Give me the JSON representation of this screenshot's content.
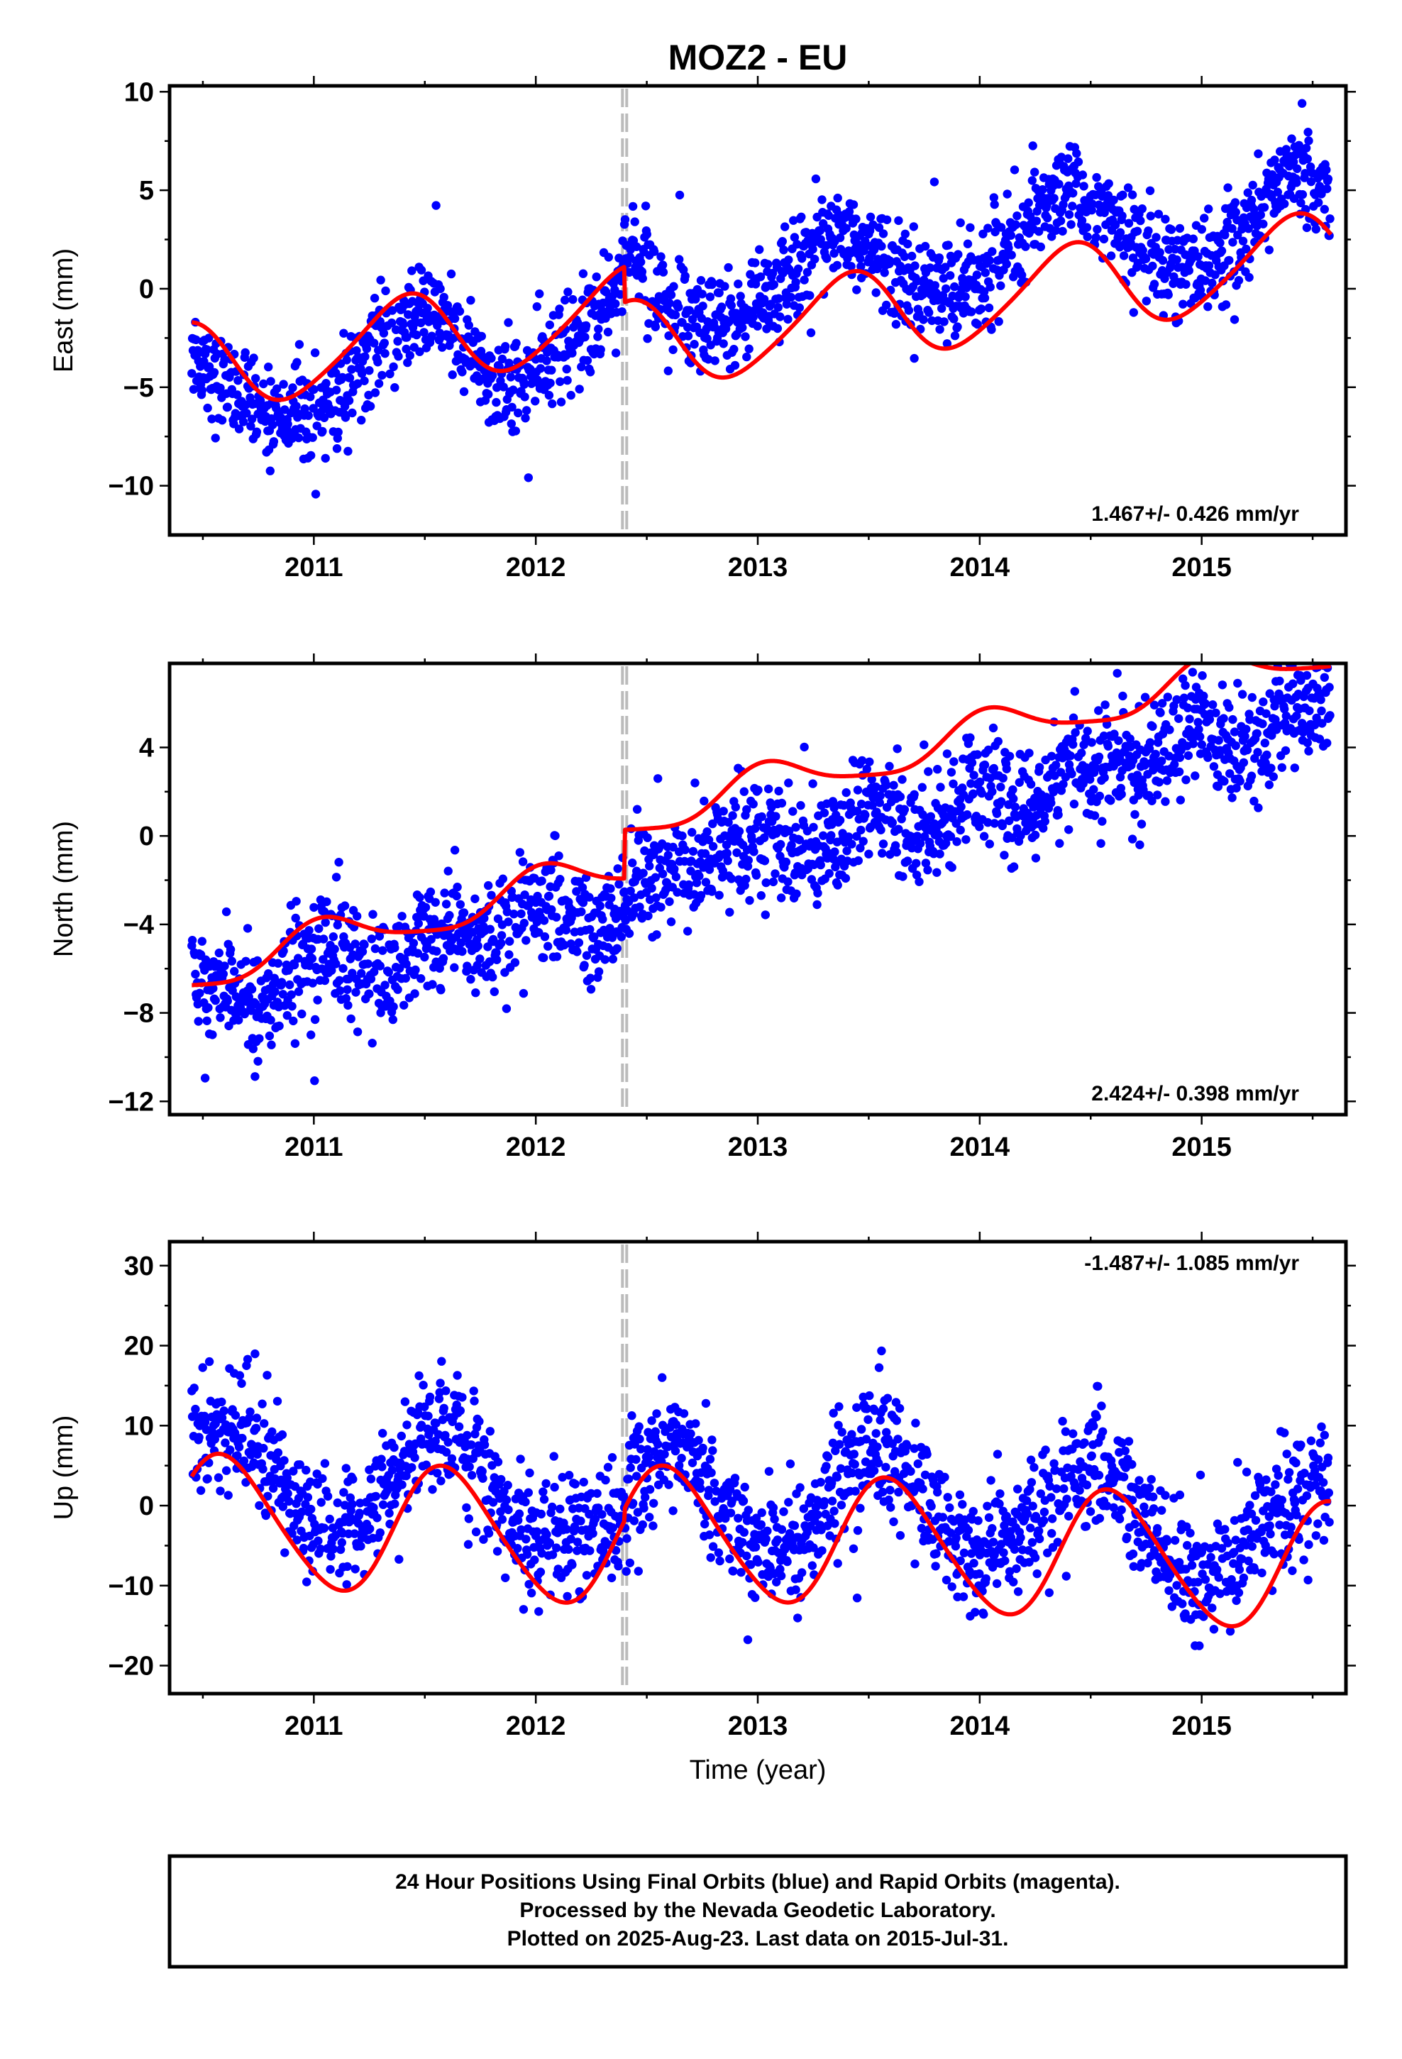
{
  "colors": {
    "points": "#0000ff",
    "fit": "#ff0000",
    "offset_marker": "#bbbbbb"
  },
  "chart_data": [
    {
      "type": "scatter",
      "title": "MOZ2 - EU",
      "ylabel": "East (mm)",
      "xlabel": "",
      "xlim": [
        2010.35,
        2015.65
      ],
      "ylim": [
        -12.5,
        10.3
      ],
      "xticks": [
        2011,
        2012,
        2013,
        2014,
        2015
      ],
      "yticks": [
        -10,
        -5,
        0,
        5,
        10
      ],
      "rate_label": "1.467+/- 0.426 mm/yr",
      "rate_placement": "bottom-right",
      "offset_epoch": 2012.4,
      "fit_model": {
        "rate": 1.467,
        "annual_amp": 2.2,
        "annual_phase_year": 0.4,
        "semiannual_amp": 0.3,
        "offset_epoch": 2012.4,
        "offset": -1.8,
        "reference_epoch": 2013.0,
        "reference_value": -0.3
      },
      "series": [
        {
          "name": "",
          "kind": "daily positions",
          "x": [
            2010.45,
            2010.6,
            2010.75,
            2010.9,
            2011.05,
            2011.2,
            2011.35,
            2011.5,
            2011.65,
            2011.8,
            2011.95,
            2012.1,
            2012.25,
            2012.38,
            2012.45,
            2012.6,
            2012.75,
            2012.9,
            2013.05,
            2013.2,
            2013.35,
            2013.5,
            2013.65,
            2013.8,
            2013.95,
            2014.1,
            2014.25,
            2014.4,
            2014.55,
            2014.7,
            2014.85,
            2015.0,
            2015.15,
            2015.3,
            2015.45,
            2015.58
          ],
          "values": [
            -3.0,
            -5.2,
            -6.4,
            -6.3,
            -5.6,
            -4.2,
            -1.9,
            -1.0,
            -2.8,
            -4.8,
            -4.6,
            -3.7,
            -2.0,
            0.7,
            2.2,
            -0.7,
            -1.9,
            -1.5,
            -0.6,
            1.6,
            3.3,
            2.4,
            0.5,
            -0.5,
            0.1,
            1.6,
            3.7,
            4.9,
            3.9,
            1.9,
            0.8,
            1.3,
            2.6,
            4.9,
            6.3,
            4.5
          ]
        },
        {
          "name": "",
          "kind": "fit",
          "color": "#ff0000"
        }
      ]
    },
    {
      "type": "scatter",
      "title": "",
      "ylabel": "North (mm)",
      "xlabel": "",
      "xlim": [
        2010.35,
        2015.65
      ],
      "ylim": [
        -12.6,
        7.8
      ],
      "xticks": [
        2011,
        2012,
        2013,
        2014,
        2015
      ],
      "yticks": [
        -12,
        -8,
        -4,
        0,
        4
      ],
      "rate_label": "2.424+/- 0.398 mm/yr",
      "rate_placement": "bottom-right",
      "offset_epoch": 2012.4,
      "fit_model": {
        "rate": 2.424,
        "annual_amp": 0.9,
        "annual_phase_year": 0.05,
        "semiannual_amp": 0.2,
        "offset_epoch": 2012.4,
        "offset": 2.2,
        "reference_epoch": 2013.0,
        "reference_value": 0.0
      },
      "series": [
        {
          "name": "",
          "kind": "daily positions",
          "x": [
            2010.45,
            2010.6,
            2010.75,
            2010.9,
            2011.05,
            2011.2,
            2011.35,
            2011.5,
            2011.65,
            2011.8,
            2011.95,
            2012.1,
            2012.25,
            2012.38,
            2012.45,
            2012.6,
            2012.75,
            2012.9,
            2013.05,
            2013.2,
            2013.35,
            2013.5,
            2013.65,
            2013.8,
            2013.95,
            2014.1,
            2014.25,
            2014.4,
            2014.55,
            2014.7,
            2014.85,
            2015.0,
            2015.15,
            2015.3,
            2015.45,
            2015.58
          ],
          "values": [
            -6.8,
            -6.6,
            -7.6,
            -6.2,
            -5.0,
            -5.8,
            -6.4,
            -4.5,
            -4.8,
            -4.8,
            -2.8,
            -3.0,
            -4.2,
            -3.5,
            -1.5,
            -1.4,
            -1.6,
            -0.2,
            0.4,
            -0.9,
            0.2,
            1.4,
            0.6,
            0.5,
            2.6,
            1.3,
            1.1,
            3.3,
            3.3,
            2.5,
            4.5,
            5.1,
            3.4,
            4.4,
            5.8,
            6.1
          ]
        },
        {
          "name": "",
          "kind": "fit",
          "color": "#ff0000"
        }
      ]
    },
    {
      "type": "scatter",
      "title": "",
      "ylabel": "Up (mm)",
      "xlabel": "Time (year)",
      "xlim": [
        2010.35,
        2015.65
      ],
      "ylim": [
        -23.5,
        33
      ],
      "xticks": [
        2011,
        2012,
        2013,
        2014,
        2015
      ],
      "yticks": [
        -20,
        -10,
        0,
        10,
        20,
        30
      ],
      "rate_label": "-1.487+/- 1.085 mm/yr",
      "rate_placement": "top-right",
      "offset_epoch": 2012.4,
      "fit_model": {
        "rate": -1.487,
        "annual_amp": 8.0,
        "annual_phase_year": 0.6,
        "semiannual_amp": 0.8,
        "offset_epoch": 2012.4,
        "offset": 1.5,
        "reference_epoch": 2013.0,
        "reference_value": -5.5
      },
      "series": [
        {
          "name": "",
          "kind": "daily positions",
          "x": [
            2010.45,
            2010.6,
            2010.75,
            2010.9,
            2011.05,
            2011.2,
            2011.35,
            2011.5,
            2011.65,
            2011.8,
            2011.95,
            2012.1,
            2012.25,
            2012.38,
            2012.45,
            2012.6,
            2012.75,
            2012.9,
            2013.05,
            2013.2,
            2013.35,
            2013.5,
            2013.65,
            2013.8,
            2013.95,
            2014.1,
            2014.25,
            2014.4,
            2014.55,
            2014.7,
            2014.85,
            2015.0,
            2015.15,
            2015.3,
            2015.45,
            2015.58
          ],
          "values": [
            8.0,
            11.0,
            8.0,
            1.0,
            -3.5,
            -2.0,
            3.0,
            9.5,
            8.5,
            1.0,
            -4.0,
            -4.8,
            -3.0,
            -1.0,
            4.0,
            9.0,
            4.0,
            -3.0,
            -5.5,
            -3.5,
            2.5,
            7.5,
            5.5,
            -1.5,
            -7.0,
            -6.0,
            -1.5,
            4.5,
            6.0,
            0.5,
            -6.0,
            -8.5,
            -7.0,
            -2.0,
            2.0,
            4.5
          ]
        },
        {
          "name": "",
          "kind": "fit",
          "color": "#ff0000"
        }
      ]
    }
  ],
  "footer": {
    "line1": "24 Hour Positions Using Final Orbits (blue) and Rapid Orbits (magenta).",
    "line2": "Processed by the Nevada Geodetic Laboratory.",
    "line3": "Plotted on 2025-Aug-23. Last data on 2015-Jul-31."
  }
}
